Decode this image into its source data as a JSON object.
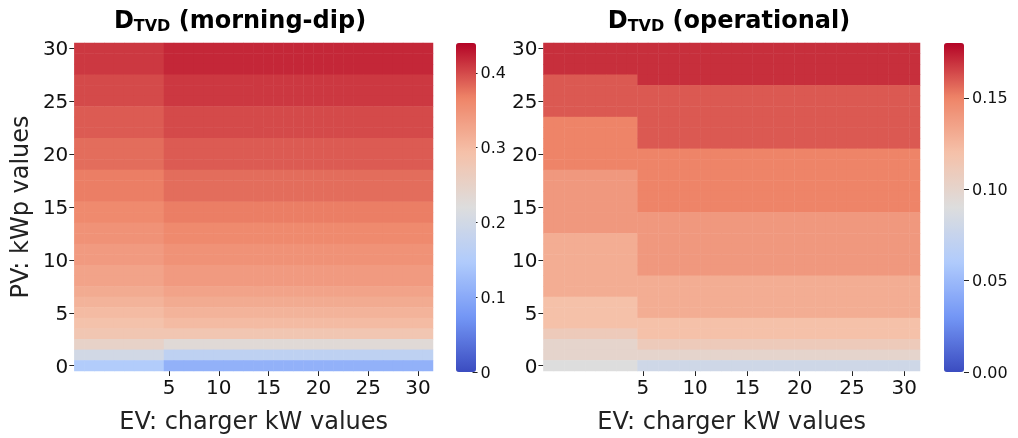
{
  "chart_data": [
    {
      "type": "heatmap",
      "title": "D$_{TVD}$ (morning-dip)",
      "xlabel": "EV: charger kW values",
      "ylabel": "PV: kWp values",
      "categories": [
        null,
        null,
        null,
        null,
        null,
        null,
        null,
        null,
        null,
        "5",
        null,
        null,
        null,
        null,
        "10",
        null,
        null,
        null,
        null,
        "15",
        null,
        null,
        null,
        null,
        "20",
        null,
        null,
        null,
        null,
        "25",
        null,
        null,
        null,
        null,
        "30",
        null
      ],
      "y_categories": [
        "30",
        null,
        null,
        null,
        null,
        "25",
        null,
        null,
        null,
        null,
        "20",
        null,
        null,
        null,
        null,
        "15",
        null,
        null,
        null,
        null,
        "10",
        null,
        null,
        null,
        null,
        "5",
        null,
        null,
        null,
        null,
        "0"
      ],
      "clim": [
        0,
        0.44
      ],
      "cticks": [
        0.0,
        {
          "value": 0.1,
          "label": "0.1"
        },
        {
          "value": 0.2,
          "label": "0.2"
        },
        {
          "value": 0.3,
          "label": "0.3"
        },
        {
          "value": 0.4,
          "label": "0.4"
        }
      ],
      "cells": [
        [
          0.41,
          0.41,
          0.41,
          0.41,
          0.41,
          0.41,
          0.41,
          0.41,
          0.41,
          0.42,
          0.42,
          0.42,
          0.42,
          0.42,
          0.42,
          0.42,
          0.42,
          0.42,
          0.42,
          0.42,
          0.42,
          0.42,
          0.42,
          0.42,
          0.42,
          0.42,
          0.42,
          0.42,
          0.42,
          0.42,
          0.42,
          0.42,
          0.42,
          0.42,
          0.42,
          0.42
        ],
        [
          0.41,
          0.41,
          0.41,
          0.41,
          0.41,
          0.41,
          0.41,
          0.41,
          0.41,
          0.42,
          0.42,
          0.42,
          0.42,
          0.42,
          0.42,
          0.42,
          0.42,
          0.42,
          0.42,
          0.42,
          0.42,
          0.42,
          0.42,
          0.42,
          0.42,
          0.42,
          0.42,
          0.42,
          0.42,
          0.42,
          0.42,
          0.42,
          0.42,
          0.42,
          0.42,
          0.42
        ],
        [
          0.41,
          0.41,
          0.41,
          0.41,
          0.41,
          0.41,
          0.41,
          0.41,
          0.41,
          0.42,
          0.42,
          0.42,
          0.42,
          0.42,
          0.42,
          0.42,
          0.42,
          0.42,
          0.42,
          0.42,
          0.42,
          0.42,
          0.42,
          0.42,
          0.42,
          0.42,
          0.42,
          0.42,
          0.42,
          0.42,
          0.42,
          0.42,
          0.42,
          0.42,
          0.42,
          0.42
        ],
        [
          0.4,
          0.4,
          0.4,
          0.4,
          0.4,
          0.4,
          0.4,
          0.4,
          0.4,
          0.41,
          0.41,
          0.41,
          0.41,
          0.41,
          0.41,
          0.41,
          0.41,
          0.41,
          0.41,
          0.41,
          0.41,
          0.41,
          0.41,
          0.41,
          0.41,
          0.41,
          0.41,
          0.41,
          0.41,
          0.41,
          0.41,
          0.41,
          0.41,
          0.41,
          0.41,
          0.41
        ],
        [
          0.4,
          0.4,
          0.4,
          0.4,
          0.4,
          0.4,
          0.4,
          0.4,
          0.4,
          0.41,
          0.41,
          0.41,
          0.41,
          0.41,
          0.41,
          0.41,
          0.41,
          0.41,
          0.41,
          0.41,
          0.41,
          0.41,
          0.41,
          0.41,
          0.41,
          0.41,
          0.41,
          0.41,
          0.41,
          0.41,
          0.41,
          0.41,
          0.41,
          0.41,
          0.41,
          0.41
        ],
        [
          0.4,
          0.4,
          0.4,
          0.4,
          0.4,
          0.4,
          0.4,
          0.4,
          0.4,
          0.41,
          0.41,
          0.41,
          0.41,
          0.41,
          0.41,
          0.41,
          0.41,
          0.41,
          0.41,
          0.41,
          0.41,
          0.41,
          0.41,
          0.41,
          0.41,
          0.41,
          0.41,
          0.41,
          0.41,
          0.41,
          0.41,
          0.41,
          0.41,
          0.41,
          0.41,
          0.41
        ],
        [
          0.39,
          0.39,
          0.39,
          0.39,
          0.39,
          0.39,
          0.39,
          0.39,
          0.39,
          0.4,
          0.4,
          0.4,
          0.4,
          0.4,
          0.4,
          0.4,
          0.4,
          0.4,
          0.4,
          0.4,
          0.4,
          0.4,
          0.4,
          0.4,
          0.4,
          0.4,
          0.4,
          0.4,
          0.4,
          0.4,
          0.4,
          0.4,
          0.4,
          0.4,
          0.4,
          0.4
        ],
        [
          0.39,
          0.39,
          0.39,
          0.39,
          0.39,
          0.39,
          0.39,
          0.39,
          0.39,
          0.4,
          0.4,
          0.4,
          0.4,
          0.4,
          0.4,
          0.4,
          0.4,
          0.4,
          0.4,
          0.4,
          0.4,
          0.4,
          0.4,
          0.4,
          0.4,
          0.4,
          0.4,
          0.4,
          0.4,
          0.4,
          0.4,
          0.4,
          0.4,
          0.4,
          0.4,
          0.4
        ],
        [
          0.39,
          0.39,
          0.39,
          0.39,
          0.39,
          0.39,
          0.39,
          0.39,
          0.39,
          0.4,
          0.4,
          0.4,
          0.4,
          0.4,
          0.4,
          0.4,
          0.4,
          0.4,
          0.4,
          0.4,
          0.4,
          0.4,
          0.4,
          0.4,
          0.4,
          0.4,
          0.4,
          0.4,
          0.4,
          0.4,
          0.4,
          0.4,
          0.4,
          0.4,
          0.4,
          0.4
        ],
        [
          0.38,
          0.38,
          0.38,
          0.38,
          0.38,
          0.38,
          0.38,
          0.38,
          0.38,
          0.39,
          0.39,
          0.39,
          0.39,
          0.39,
          0.39,
          0.39,
          0.39,
          0.39,
          0.39,
          0.39,
          0.39,
          0.39,
          0.39,
          0.39,
          0.39,
          0.39,
          0.39,
          0.39,
          0.39,
          0.39,
          0.39,
          0.39,
          0.39,
          0.39,
          0.39,
          0.39
        ],
        [
          0.38,
          0.38,
          0.38,
          0.38,
          0.38,
          0.38,
          0.38,
          0.38,
          0.38,
          0.39,
          0.39,
          0.39,
          0.39,
          0.39,
          0.39,
          0.39,
          0.39,
          0.39,
          0.39,
          0.39,
          0.39,
          0.39,
          0.39,
          0.39,
          0.39,
          0.39,
          0.39,
          0.39,
          0.39,
          0.39,
          0.39,
          0.39,
          0.39,
          0.39,
          0.39,
          0.39
        ],
        [
          0.38,
          0.38,
          0.38,
          0.38,
          0.38,
          0.38,
          0.38,
          0.38,
          0.38,
          0.39,
          0.39,
          0.39,
          0.39,
          0.39,
          0.39,
          0.39,
          0.39,
          0.39,
          0.39,
          0.39,
          0.39,
          0.39,
          0.39,
          0.39,
          0.39,
          0.39,
          0.39,
          0.39,
          0.39,
          0.39,
          0.39,
          0.39,
          0.39,
          0.39,
          0.39,
          0.39
        ],
        [
          0.37,
          0.37,
          0.37,
          0.37,
          0.37,
          0.37,
          0.37,
          0.37,
          0.37,
          0.38,
          0.38,
          0.38,
          0.38,
          0.38,
          0.38,
          0.38,
          0.38,
          0.38,
          0.38,
          0.38,
          0.38,
          0.38,
          0.38,
          0.38,
          0.38,
          0.38,
          0.38,
          0.38,
          0.38,
          0.38,
          0.38,
          0.38,
          0.38,
          0.38,
          0.38,
          0.38
        ],
        [
          0.37,
          0.37,
          0.37,
          0.37,
          0.37,
          0.37,
          0.37,
          0.37,
          0.37,
          0.38,
          0.38,
          0.38,
          0.38,
          0.38,
          0.38,
          0.38,
          0.38,
          0.38,
          0.38,
          0.38,
          0.38,
          0.38,
          0.38,
          0.38,
          0.38,
          0.38,
          0.38,
          0.38,
          0.38,
          0.38,
          0.38,
          0.38,
          0.38,
          0.38,
          0.38,
          0.38
        ],
        [
          0.37,
          0.37,
          0.37,
          0.37,
          0.37,
          0.37,
          0.37,
          0.37,
          0.37,
          0.38,
          0.38,
          0.38,
          0.38,
          0.38,
          0.38,
          0.38,
          0.38,
          0.38,
          0.38,
          0.38,
          0.38,
          0.38,
          0.38,
          0.38,
          0.38,
          0.38,
          0.38,
          0.38,
          0.38,
          0.38,
          0.38,
          0.38,
          0.38,
          0.38,
          0.38,
          0.38
        ],
        [
          0.36,
          0.36,
          0.36,
          0.36,
          0.36,
          0.36,
          0.36,
          0.36,
          0.36,
          0.37,
          0.37,
          0.37,
          0.37,
          0.37,
          0.37,
          0.37,
          0.37,
          0.37,
          0.37,
          0.37,
          0.37,
          0.37,
          0.37,
          0.37,
          0.37,
          0.37,
          0.37,
          0.37,
          0.37,
          0.37,
          0.37,
          0.37,
          0.37,
          0.37,
          0.37,
          0.37
        ],
        [
          0.36,
          0.36,
          0.36,
          0.36,
          0.36,
          0.36,
          0.36,
          0.36,
          0.36,
          0.37,
          0.37,
          0.37,
          0.37,
          0.37,
          0.37,
          0.37,
          0.37,
          0.37,
          0.37,
          0.37,
          0.37,
          0.37,
          0.37,
          0.37,
          0.37,
          0.37,
          0.37,
          0.37,
          0.37,
          0.37,
          0.37,
          0.37,
          0.37,
          0.37,
          0.37,
          0.37
        ],
        [
          0.35,
          0.35,
          0.35,
          0.35,
          0.35,
          0.35,
          0.35,
          0.35,
          0.35,
          0.36,
          0.36,
          0.36,
          0.36,
          0.36,
          0.36,
          0.36,
          0.36,
          0.36,
          0.36,
          0.36,
          0.36,
          0.36,
          0.36,
          0.36,
          0.36,
          0.36,
          0.36,
          0.36,
          0.36,
          0.36,
          0.36,
          0.36,
          0.36,
          0.36,
          0.36,
          0.36
        ],
        [
          0.35,
          0.35,
          0.35,
          0.35,
          0.35,
          0.35,
          0.35,
          0.35,
          0.35,
          0.36,
          0.36,
          0.36,
          0.36,
          0.36,
          0.36,
          0.36,
          0.36,
          0.36,
          0.36,
          0.36,
          0.36,
          0.36,
          0.36,
          0.36,
          0.36,
          0.36,
          0.36,
          0.36,
          0.36,
          0.36,
          0.36,
          0.36,
          0.36,
          0.36,
          0.36,
          0.36
        ],
        [
          0.34,
          0.34,
          0.34,
          0.34,
          0.34,
          0.34,
          0.34,
          0.34,
          0.34,
          0.35,
          0.35,
          0.35,
          0.35,
          0.35,
          0.35,
          0.35,
          0.35,
          0.35,
          0.35,
          0.35,
          0.35,
          0.35,
          0.35,
          0.35,
          0.35,
          0.35,
          0.35,
          0.35,
          0.35,
          0.35,
          0.35,
          0.35,
          0.35,
          0.35,
          0.35,
          0.35
        ],
        [
          0.34,
          0.34,
          0.34,
          0.34,
          0.34,
          0.34,
          0.34,
          0.34,
          0.34,
          0.35,
          0.35,
          0.35,
          0.35,
          0.35,
          0.35,
          0.35,
          0.35,
          0.35,
          0.35,
          0.35,
          0.35,
          0.35,
          0.35,
          0.35,
          0.35,
          0.35,
          0.35,
          0.35,
          0.35,
          0.35,
          0.35,
          0.35,
          0.35,
          0.35,
          0.35,
          0.35
        ],
        [
          0.33,
          0.33,
          0.33,
          0.33,
          0.33,
          0.33,
          0.33,
          0.33,
          0.33,
          0.34,
          0.34,
          0.34,
          0.34,
          0.34,
          0.34,
          0.34,
          0.34,
          0.34,
          0.34,
          0.34,
          0.34,
          0.34,
          0.34,
          0.34,
          0.34,
          0.34,
          0.34,
          0.34,
          0.34,
          0.34,
          0.34,
          0.34,
          0.34,
          0.34,
          0.34,
          0.34
        ],
        [
          0.33,
          0.33,
          0.33,
          0.33,
          0.33,
          0.33,
          0.33,
          0.33,
          0.33,
          0.34,
          0.34,
          0.34,
          0.34,
          0.34,
          0.34,
          0.34,
          0.34,
          0.34,
          0.34,
          0.34,
          0.34,
          0.34,
          0.34,
          0.34,
          0.34,
          0.34,
          0.34,
          0.34,
          0.34,
          0.34,
          0.34,
          0.34,
          0.34,
          0.34,
          0.34,
          0.34
        ],
        [
          0.32,
          0.32,
          0.32,
          0.32,
          0.32,
          0.32,
          0.32,
          0.32,
          0.32,
          0.33,
          0.33,
          0.33,
          0.33,
          0.33,
          0.33,
          0.33,
          0.33,
          0.33,
          0.33,
          0.33,
          0.33,
          0.33,
          0.33,
          0.33,
          0.33,
          0.33,
          0.33,
          0.33,
          0.33,
          0.33,
          0.33,
          0.33,
          0.33,
          0.33,
          0.33,
          0.33
        ],
        [
          0.31,
          0.31,
          0.31,
          0.31,
          0.31,
          0.31,
          0.31,
          0.31,
          0.31,
          0.32,
          0.32,
          0.32,
          0.32,
          0.32,
          0.32,
          0.32,
          0.32,
          0.32,
          0.32,
          0.32,
          0.32,
          0.32,
          0.32,
          0.32,
          0.32,
          0.32,
          0.32,
          0.32,
          0.32,
          0.32,
          0.32,
          0.32,
          0.32,
          0.32,
          0.32,
          0.32
        ],
        [
          0.3,
          0.3,
          0.3,
          0.3,
          0.3,
          0.3,
          0.3,
          0.3,
          0.3,
          0.31,
          0.31,
          0.31,
          0.31,
          0.31,
          0.31,
          0.31,
          0.31,
          0.31,
          0.31,
          0.31,
          0.31,
          0.31,
          0.31,
          0.31,
          0.31,
          0.31,
          0.31,
          0.31,
          0.31,
          0.31,
          0.31,
          0.31,
          0.31,
          0.31,
          0.31,
          0.31
        ],
        [
          0.29,
          0.29,
          0.29,
          0.29,
          0.29,
          0.29,
          0.29,
          0.29,
          0.29,
          0.3,
          0.3,
          0.3,
          0.3,
          0.3,
          0.3,
          0.3,
          0.3,
          0.3,
          0.3,
          0.3,
          0.3,
          0.3,
          0.3,
          0.3,
          0.3,
          0.3,
          0.3,
          0.3,
          0.3,
          0.3,
          0.3,
          0.3,
          0.3,
          0.3,
          0.3,
          0.3
        ],
        [
          0.28,
          0.28,
          0.28,
          0.28,
          0.28,
          0.28,
          0.28,
          0.28,
          0.28,
          0.28,
          0.28,
          0.28,
          0.28,
          0.28,
          0.28,
          0.28,
          0.28,
          0.28,
          0.28,
          0.28,
          0.28,
          0.28,
          0.28,
          0.28,
          0.28,
          0.28,
          0.28,
          0.28,
          0.28,
          0.28,
          0.28,
          0.28,
          0.28,
          0.28,
          0.28,
          0.28
        ],
        [
          0.25,
          0.25,
          0.25,
          0.25,
          0.25,
          0.25,
          0.25,
          0.25,
          0.25,
          0.23,
          0.23,
          0.23,
          0.23,
          0.23,
          0.23,
          0.23,
          0.23,
          0.23,
          0.23,
          0.23,
          0.23,
          0.23,
          0.23,
          0.23,
          0.23,
          0.23,
          0.23,
          0.23,
          0.23,
          0.23,
          0.23,
          0.23,
          0.23,
          0.23,
          0.23,
          0.23
        ],
        [
          0.2,
          0.2,
          0.2,
          0.2,
          0.2,
          0.2,
          0.2,
          0.2,
          0.2,
          0.17,
          0.17,
          0.17,
          0.17,
          0.17,
          0.17,
          0.17,
          0.17,
          0.17,
          0.17,
          0.17,
          0.17,
          0.17,
          0.17,
          0.17,
          0.17,
          0.17,
          0.17,
          0.17,
          0.17,
          0.17,
          0.17,
          0.17,
          0.17,
          0.17,
          0.17,
          0.17
        ],
        [
          0.15,
          0.15,
          0.15,
          0.15,
          0.15,
          0.15,
          0.15,
          0.15,
          0.15,
          0.11,
          0.11,
          0.11,
          0.11,
          0.11,
          0.11,
          0.11,
          0.11,
          0.11,
          0.11,
          0.11,
          0.11,
          0.11,
          0.11,
          0.11,
          0.11,
          0.11,
          0.11,
          0.11,
          0.11,
          0.11,
          0.11,
          0.11,
          0.11,
          0.11,
          0.11,
          0.11
        ]
      ]
    },
    {
      "type": "heatmap",
      "title": "D$_{TVD}$ (operational)",
      "xlabel": "EV: charger kW values",
      "categories": [
        null,
        null,
        null,
        null,
        null,
        null,
        null,
        null,
        null,
        "5",
        null,
        null,
        null,
        null,
        "10",
        null,
        null,
        null,
        null,
        "15",
        null,
        null,
        null,
        null,
        "20",
        null,
        null,
        null,
        null,
        "25",
        null,
        null,
        null,
        null,
        "30",
        null
      ],
      "y_categories": [
        "30",
        null,
        null,
        null,
        null,
        "25",
        null,
        null,
        null,
        null,
        "20",
        null,
        null,
        null,
        null,
        "15",
        null,
        null,
        null,
        null,
        "10",
        null,
        null,
        null,
        null,
        "5",
        null,
        null,
        null,
        null,
        "0"
      ],
      "clim": [
        0,
        0.18
      ],
      "cticks": [
        {
          "value": 0,
          "label": "0.00"
        },
        {
          "value": 0.05,
          "label": "0.05"
        },
        {
          "value": 0.1,
          "label": "0.10"
        },
        {
          "value": 0.15,
          "label": "0.15"
        }
      ],
      "cells": [
        [
          0.17,
          0.17,
          0.17,
          0.17,
          0.17,
          0.17,
          0.17,
          0.17,
          0.17,
          0.17,
          0.17,
          0.17,
          0.17,
          0.17,
          0.17,
          0.17,
          0.17,
          0.17,
          0.17,
          0.17,
          0.17,
          0.17,
          0.17,
          0.17,
          0.17,
          0.17,
          0.17,
          0.17,
          0.17,
          0.17,
          0.17,
          0.17,
          0.17,
          0.17,
          0.17,
          0.17
        ],
        [
          0.17,
          0.17,
          0.17,
          0.17,
          0.17,
          0.17,
          0.17,
          0.17,
          0.17,
          0.17,
          0.17,
          0.17,
          0.17,
          0.17,
          0.17,
          0.17,
          0.17,
          0.17,
          0.17,
          0.17,
          0.17,
          0.17,
          0.17,
          0.17,
          0.17,
          0.17,
          0.17,
          0.17,
          0.17,
          0.17,
          0.17,
          0.17,
          0.17,
          0.17,
          0.17,
          0.17
        ],
        [
          0.17,
          0.17,
          0.17,
          0.17,
          0.17,
          0.17,
          0.17,
          0.17,
          0.17,
          0.17,
          0.17,
          0.17,
          0.17,
          0.17,
          0.17,
          0.17,
          0.17,
          0.17,
          0.17,
          0.17,
          0.17,
          0.17,
          0.17,
          0.17,
          0.17,
          0.17,
          0.17,
          0.17,
          0.17,
          0.17,
          0.17,
          0.17,
          0.17,
          0.17,
          0.17,
          0.17
        ],
        [
          0.16,
          0.16,
          0.16,
          0.16,
          0.16,
          0.16,
          0.16,
          0.16,
          0.16,
          0.17,
          0.17,
          0.17,
          0.17,
          0.17,
          0.17,
          0.17,
          0.17,
          0.17,
          0.17,
          0.17,
          0.17,
          0.17,
          0.17,
          0.17,
          0.17,
          0.17,
          0.17,
          0.17,
          0.17,
          0.17,
          0.17,
          0.17,
          0.17,
          0.17,
          0.17,
          0.17
        ],
        [
          0.16,
          0.16,
          0.16,
          0.16,
          0.16,
          0.16,
          0.16,
          0.16,
          0.16,
          0.16,
          0.16,
          0.16,
          0.16,
          0.16,
          0.16,
          0.16,
          0.16,
          0.16,
          0.16,
          0.16,
          0.16,
          0.16,
          0.16,
          0.16,
          0.16,
          0.16,
          0.16,
          0.16,
          0.16,
          0.16,
          0.16,
          0.16,
          0.16,
          0.16,
          0.16,
          0.16
        ],
        [
          0.16,
          0.16,
          0.16,
          0.16,
          0.16,
          0.16,
          0.16,
          0.16,
          0.16,
          0.16,
          0.16,
          0.16,
          0.16,
          0.16,
          0.16,
          0.16,
          0.16,
          0.16,
          0.16,
          0.16,
          0.16,
          0.16,
          0.16,
          0.16,
          0.16,
          0.16,
          0.16,
          0.16,
          0.16,
          0.16,
          0.16,
          0.16,
          0.16,
          0.16,
          0.16,
          0.16
        ],
        [
          0.16,
          0.16,
          0.16,
          0.16,
          0.16,
          0.16,
          0.16,
          0.16,
          0.16,
          0.16,
          0.16,
          0.16,
          0.16,
          0.16,
          0.16,
          0.16,
          0.16,
          0.16,
          0.16,
          0.16,
          0.16,
          0.16,
          0.16,
          0.16,
          0.16,
          0.16,
          0.16,
          0.16,
          0.16,
          0.16,
          0.16,
          0.16,
          0.16,
          0.16,
          0.16,
          0.16
        ],
        [
          0.15,
          0.15,
          0.15,
          0.15,
          0.15,
          0.15,
          0.15,
          0.15,
          0.15,
          0.16,
          0.16,
          0.16,
          0.16,
          0.16,
          0.16,
          0.16,
          0.16,
          0.16,
          0.16,
          0.16,
          0.16,
          0.16,
          0.16,
          0.16,
          0.16,
          0.16,
          0.16,
          0.16,
          0.16,
          0.16,
          0.16,
          0.16,
          0.16,
          0.16,
          0.16,
          0.16
        ],
        [
          0.15,
          0.15,
          0.15,
          0.15,
          0.15,
          0.15,
          0.15,
          0.15,
          0.15,
          0.16,
          0.16,
          0.16,
          0.16,
          0.16,
          0.16,
          0.16,
          0.16,
          0.16,
          0.16,
          0.16,
          0.16,
          0.16,
          0.16,
          0.16,
          0.16,
          0.16,
          0.16,
          0.16,
          0.16,
          0.16,
          0.16,
          0.16,
          0.16,
          0.16,
          0.16,
          0.16
        ],
        [
          0.15,
          0.15,
          0.15,
          0.15,
          0.15,
          0.15,
          0.15,
          0.15,
          0.15,
          0.16,
          0.16,
          0.16,
          0.16,
          0.16,
          0.16,
          0.16,
          0.16,
          0.16,
          0.16,
          0.16,
          0.16,
          0.16,
          0.16,
          0.16,
          0.16,
          0.16,
          0.16,
          0.16,
          0.16,
          0.16,
          0.16,
          0.16,
          0.16,
          0.16,
          0.16,
          0.16
        ],
        [
          0.15,
          0.15,
          0.15,
          0.15,
          0.15,
          0.15,
          0.15,
          0.15,
          0.15,
          0.15,
          0.15,
          0.15,
          0.15,
          0.15,
          0.15,
          0.15,
          0.15,
          0.15,
          0.15,
          0.15,
          0.15,
          0.15,
          0.15,
          0.15,
          0.15,
          0.15,
          0.15,
          0.15,
          0.15,
          0.15,
          0.15,
          0.15,
          0.15,
          0.15,
          0.15,
          0.15
        ],
        [
          0.15,
          0.15,
          0.15,
          0.15,
          0.15,
          0.15,
          0.15,
          0.15,
          0.15,
          0.15,
          0.15,
          0.15,
          0.15,
          0.15,
          0.15,
          0.15,
          0.15,
          0.15,
          0.15,
          0.15,
          0.15,
          0.15,
          0.15,
          0.15,
          0.15,
          0.15,
          0.15,
          0.15,
          0.15,
          0.15,
          0.15,
          0.15,
          0.15,
          0.15,
          0.15,
          0.15
        ],
        [
          0.14,
          0.14,
          0.14,
          0.14,
          0.14,
          0.14,
          0.14,
          0.14,
          0.14,
          0.15,
          0.15,
          0.15,
          0.15,
          0.15,
          0.15,
          0.15,
          0.15,
          0.15,
          0.15,
          0.15,
          0.15,
          0.15,
          0.15,
          0.15,
          0.15,
          0.15,
          0.15,
          0.15,
          0.15,
          0.15,
          0.15,
          0.15,
          0.15,
          0.15,
          0.15,
          0.15
        ],
        [
          0.14,
          0.14,
          0.14,
          0.14,
          0.14,
          0.14,
          0.14,
          0.14,
          0.14,
          0.15,
          0.15,
          0.15,
          0.15,
          0.15,
          0.15,
          0.15,
          0.15,
          0.15,
          0.15,
          0.15,
          0.15,
          0.15,
          0.15,
          0.15,
          0.15,
          0.15,
          0.15,
          0.15,
          0.15,
          0.15,
          0.15,
          0.15,
          0.15,
          0.15,
          0.15,
          0.15
        ],
        [
          0.14,
          0.14,
          0.14,
          0.14,
          0.14,
          0.14,
          0.14,
          0.14,
          0.14,
          0.15,
          0.15,
          0.15,
          0.15,
          0.15,
          0.15,
          0.15,
          0.15,
          0.15,
          0.15,
          0.15,
          0.15,
          0.15,
          0.15,
          0.15,
          0.15,
          0.15,
          0.15,
          0.15,
          0.15,
          0.15,
          0.15,
          0.15,
          0.15,
          0.15,
          0.15,
          0.15
        ],
        [
          0.14,
          0.14,
          0.14,
          0.14,
          0.14,
          0.14,
          0.14,
          0.14,
          0.14,
          0.15,
          0.15,
          0.15,
          0.15,
          0.15,
          0.15,
          0.15,
          0.15,
          0.15,
          0.15,
          0.15,
          0.15,
          0.15,
          0.15,
          0.15,
          0.15,
          0.15,
          0.15,
          0.15,
          0.15,
          0.15,
          0.15,
          0.15,
          0.15,
          0.15,
          0.15,
          0.15
        ],
        [
          0.14,
          0.14,
          0.14,
          0.14,
          0.14,
          0.14,
          0.14,
          0.14,
          0.14,
          0.14,
          0.14,
          0.14,
          0.14,
          0.14,
          0.14,
          0.14,
          0.14,
          0.14,
          0.14,
          0.14,
          0.14,
          0.14,
          0.14,
          0.14,
          0.14,
          0.14,
          0.14,
          0.14,
          0.14,
          0.14,
          0.14,
          0.14,
          0.14,
          0.14,
          0.14,
          0.14
        ],
        [
          0.14,
          0.14,
          0.14,
          0.14,
          0.14,
          0.14,
          0.14,
          0.14,
          0.14,
          0.14,
          0.14,
          0.14,
          0.14,
          0.14,
          0.14,
          0.14,
          0.14,
          0.14,
          0.14,
          0.14,
          0.14,
          0.14,
          0.14,
          0.14,
          0.14,
          0.14,
          0.14,
          0.14,
          0.14,
          0.14,
          0.14,
          0.14,
          0.14,
          0.14,
          0.14,
          0.14
        ],
        [
          0.13,
          0.13,
          0.13,
          0.13,
          0.13,
          0.13,
          0.13,
          0.13,
          0.13,
          0.14,
          0.14,
          0.14,
          0.14,
          0.14,
          0.14,
          0.14,
          0.14,
          0.14,
          0.14,
          0.14,
          0.14,
          0.14,
          0.14,
          0.14,
          0.14,
          0.14,
          0.14,
          0.14,
          0.14,
          0.14,
          0.14,
          0.14,
          0.14,
          0.14,
          0.14,
          0.14
        ],
        [
          0.13,
          0.13,
          0.13,
          0.13,
          0.13,
          0.13,
          0.13,
          0.13,
          0.13,
          0.14,
          0.14,
          0.14,
          0.14,
          0.14,
          0.14,
          0.14,
          0.14,
          0.14,
          0.14,
          0.14,
          0.14,
          0.14,
          0.14,
          0.14,
          0.14,
          0.14,
          0.14,
          0.14,
          0.14,
          0.14,
          0.14,
          0.14,
          0.14,
          0.14,
          0.14,
          0.14
        ],
        [
          0.13,
          0.13,
          0.13,
          0.13,
          0.13,
          0.13,
          0.13,
          0.13,
          0.13,
          0.14,
          0.14,
          0.14,
          0.14,
          0.14,
          0.14,
          0.14,
          0.14,
          0.14,
          0.14,
          0.14,
          0.14,
          0.14,
          0.14,
          0.14,
          0.14,
          0.14,
          0.14,
          0.14,
          0.14,
          0.14,
          0.14,
          0.14,
          0.14,
          0.14,
          0.14,
          0.14
        ],
        [
          0.13,
          0.13,
          0.13,
          0.13,
          0.13,
          0.13,
          0.13,
          0.13,
          0.13,
          0.14,
          0.14,
          0.14,
          0.14,
          0.14,
          0.14,
          0.14,
          0.14,
          0.14,
          0.14,
          0.14,
          0.14,
          0.14,
          0.14,
          0.14,
          0.14,
          0.14,
          0.14,
          0.14,
          0.14,
          0.14,
          0.14,
          0.14,
          0.14,
          0.14,
          0.14,
          0.14
        ],
        [
          0.13,
          0.13,
          0.13,
          0.13,
          0.13,
          0.13,
          0.13,
          0.13,
          0.13,
          0.13,
          0.13,
          0.13,
          0.13,
          0.13,
          0.13,
          0.13,
          0.13,
          0.13,
          0.13,
          0.13,
          0.13,
          0.13,
          0.13,
          0.13,
          0.13,
          0.13,
          0.13,
          0.13,
          0.13,
          0.13,
          0.13,
          0.13,
          0.13,
          0.13,
          0.13,
          0.13
        ],
        [
          0.13,
          0.13,
          0.13,
          0.13,
          0.13,
          0.13,
          0.13,
          0.13,
          0.13,
          0.13,
          0.13,
          0.13,
          0.13,
          0.13,
          0.13,
          0.13,
          0.13,
          0.13,
          0.13,
          0.13,
          0.13,
          0.13,
          0.13,
          0.13,
          0.13,
          0.13,
          0.13,
          0.13,
          0.13,
          0.13,
          0.13,
          0.13,
          0.13,
          0.13,
          0.13,
          0.13
        ],
        [
          0.12,
          0.12,
          0.12,
          0.12,
          0.12,
          0.12,
          0.12,
          0.12,
          0.12,
          0.13,
          0.13,
          0.13,
          0.13,
          0.13,
          0.13,
          0.13,
          0.13,
          0.13,
          0.13,
          0.13,
          0.13,
          0.13,
          0.13,
          0.13,
          0.13,
          0.13,
          0.13,
          0.13,
          0.13,
          0.13,
          0.13,
          0.13,
          0.13,
          0.13,
          0.13,
          0.13
        ],
        [
          0.12,
          0.12,
          0.12,
          0.12,
          0.12,
          0.12,
          0.12,
          0.12,
          0.12,
          0.13,
          0.13,
          0.13,
          0.13,
          0.13,
          0.13,
          0.13,
          0.13,
          0.13,
          0.13,
          0.13,
          0.13,
          0.13,
          0.13,
          0.13,
          0.13,
          0.13,
          0.13,
          0.13,
          0.13,
          0.13,
          0.13,
          0.13,
          0.13,
          0.13,
          0.13,
          0.13
        ],
        [
          0.12,
          0.12,
          0.12,
          0.12,
          0.12,
          0.12,
          0.12,
          0.12,
          0.12,
          0.12,
          0.12,
          0.12,
          0.12,
          0.12,
          0.12,
          0.12,
          0.12,
          0.12,
          0.12,
          0.12,
          0.12,
          0.12,
          0.12,
          0.12,
          0.12,
          0.12,
          0.12,
          0.12,
          0.12,
          0.12,
          0.12,
          0.12,
          0.12,
          0.12,
          0.12,
          0.12
        ],
        [
          0.11,
          0.11,
          0.11,
          0.11,
          0.11,
          0.11,
          0.11,
          0.11,
          0.11,
          0.12,
          0.12,
          0.12,
          0.12,
          0.12,
          0.12,
          0.12,
          0.12,
          0.12,
          0.12,
          0.12,
          0.12,
          0.12,
          0.12,
          0.12,
          0.12,
          0.12,
          0.12,
          0.12,
          0.12,
          0.12,
          0.12,
          0.12,
          0.12,
          0.12,
          0.12,
          0.12
        ],
        [
          0.1,
          0.1,
          0.1,
          0.1,
          0.1,
          0.1,
          0.1,
          0.1,
          0.1,
          0.11,
          0.11,
          0.11,
          0.11,
          0.11,
          0.11,
          0.11,
          0.11,
          0.11,
          0.11,
          0.11,
          0.11,
          0.11,
          0.11,
          0.11,
          0.11,
          0.11,
          0.11,
          0.11,
          0.11,
          0.11,
          0.11,
          0.11,
          0.11,
          0.11,
          0.11,
          0.11
        ],
        [
          0.1,
          0.1,
          0.1,
          0.1,
          0.1,
          0.1,
          0.1,
          0.1,
          0.1,
          0.1,
          0.1,
          0.1,
          0.1,
          0.1,
          0.1,
          0.1,
          0.1,
          0.1,
          0.1,
          0.1,
          0.1,
          0.1,
          0.1,
          0.1,
          0.1,
          0.1,
          0.1,
          0.1,
          0.1,
          0.1,
          0.1,
          0.1,
          0.1,
          0.1,
          0.1,
          0.1
        ],
        [
          0.09,
          0.09,
          0.09,
          0.09,
          0.09,
          0.09,
          0.09,
          0.09,
          0.09,
          0.08,
          0.08,
          0.08,
          0.08,
          0.08,
          0.08,
          0.08,
          0.08,
          0.08,
          0.08,
          0.08,
          0.08,
          0.08,
          0.08,
          0.08,
          0.08,
          0.08,
          0.08,
          0.08,
          0.08,
          0.08,
          0.08,
          0.08,
          0.08,
          0.08,
          0.08,
          0.08
        ]
      ]
    }
  ]
}
